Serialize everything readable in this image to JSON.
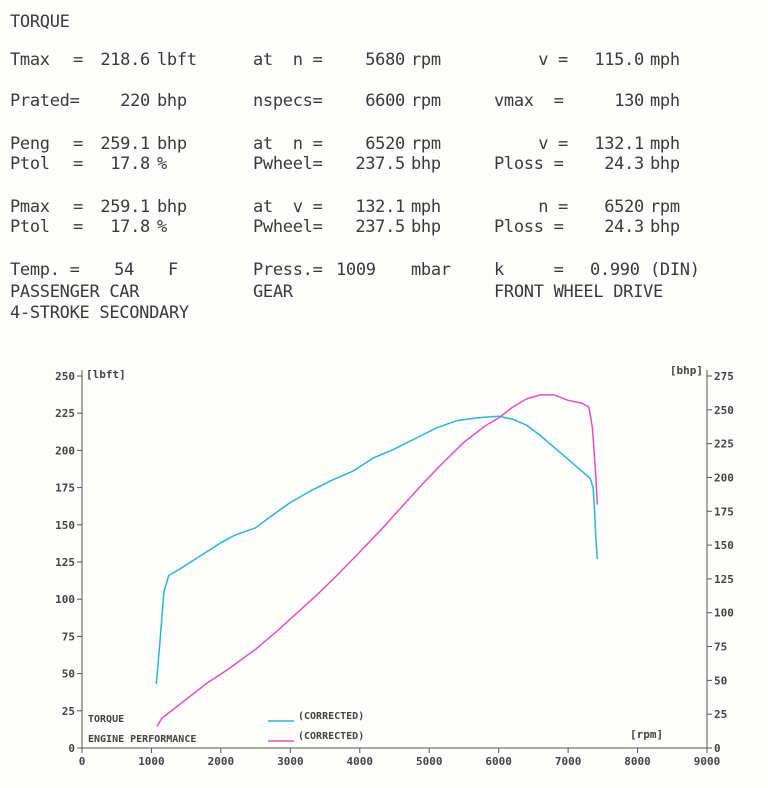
{
  "report": {
    "title": "TORQUE",
    "row1": {
      "label": "Tmax",
      "eq": "=",
      "value": "218.6",
      "unit": "lbft",
      "at_label": "at  n =",
      "at_value": "5680",
      "at_unit": "rpm",
      "c3_label": "v =",
      "c3_value": "115.0",
      "c3_unit": "mph"
    },
    "row2": {
      "label": "Prated=",
      "value": "220",
      "unit": "bhp",
      "mid_label": "nspecs=",
      "mid_value": "6600",
      "mid_unit": "rpm",
      "c3_label": "vmax  =",
      "c3_value": "130",
      "c3_unit": "mph"
    },
    "row3": {
      "label": "Peng",
      "eq": "=",
      "value": "259.1",
      "unit": "bhp",
      "at_label": "at  n =",
      "at_value": "6520",
      "at_unit": "rpm",
      "c3_label": "v =",
      "c3_value": "132.1",
      "c3_unit": "mph"
    },
    "row4": {
      "label": "Ptol",
      "eq": "=",
      "value": "17.8",
      "unit": "%",
      "mid_label": "Pwheel=",
      "mid_value": "237.5",
      "mid_unit": "bhp",
      "c3_label": "Ploss =",
      "c3_value": "24.3",
      "c3_unit": "bhp"
    },
    "row5": {
      "label": "Pmax",
      "eq": "=",
      "value": "259.1",
      "unit": "bhp",
      "at_label": "at  v =",
      "at_value": "132.1",
      "at_unit": "mph",
      "c3_label": "n =",
      "c3_value": "6520",
      "c3_unit": "rpm"
    },
    "row6": {
      "label": "Ptol",
      "eq": "=",
      "value": "17.8",
      "unit": "%",
      "mid_label": "Pwheel=",
      "mid_value": "237.5",
      "mid_unit": "bhp",
      "c3_label": "Ploss =",
      "c3_value": "24.3",
      "c3_unit": "bhp"
    },
    "row7": {
      "label": "Temp. =",
      "value": "54",
      "unit": "F",
      "mid_label": "Press.=",
      "mid_value": "1009",
      "mid_unit": "mbar",
      "c3_label": "k     =",
      "c3_value": "0.990",
      "c3_unit": "(DIN)"
    },
    "line8": {
      "c1": "PASSENGER CAR",
      "c2": "GEAR",
      "c3": "FRONT WHEEL DRIVE"
    },
    "line9": {
      "c1": "4-STROKE SECONDARY"
    }
  },
  "chart_data": {
    "type": "line",
    "xlabel": "[rpm]",
    "ylabel_left": "[lbft]",
    "ylabel_right": "[bhp]",
    "xlim": [
      0,
      9000
    ],
    "ylim_left": [
      0,
      250
    ],
    "ylim_right": [
      0,
      275
    ],
    "xticks": [
      "0",
      "1000",
      "2000",
      "3000",
      "4000",
      "5000",
      "6000",
      "7000",
      "8000",
      "9000"
    ],
    "yticks_left": [
      "0",
      "25",
      "50",
      "75",
      "100",
      "125",
      "150",
      "175",
      "200",
      "225",
      "250"
    ],
    "yticks_right": [
      "0",
      "25",
      "50",
      "75",
      "100",
      "125",
      "150",
      "175",
      "200",
      "225",
      "250",
      "275"
    ],
    "legend": [
      {
        "label": "TORQUE",
        "tag": "(CORRECTED)",
        "color": "#2ab4d8"
      },
      {
        "label": "ENGINE PERFORMANCE",
        "tag": "(CORRECTED)",
        "color": "#e050c8"
      }
    ],
    "series": [
      {
        "name": "TORQUE",
        "axis": "left",
        "color": "#2ab4d8",
        "x": [
          1070,
          1120,
          1180,
          1250,
          1400,
          1600,
          1800,
          2000,
          2200,
          2500,
          2700,
          3000,
          3300,
          3600,
          3900,
          4200,
          4500,
          4800,
          5100,
          5400,
          5700,
          6000,
          6200,
          6400,
          6600,
          6800,
          7000,
          7150,
          7250,
          7320,
          7360,
          7380,
          7400,
          7420
        ],
        "y": [
          43,
          70,
          105,
          116,
          120,
          126,
          132,
          138,
          143,
          148,
          155,
          165,
          173,
          180,
          186,
          195,
          201,
          208,
          215,
          220,
          222,
          223,
          221,
          217,
          210,
          202,
          194,
          188,
          184,
          181,
          175,
          160,
          140,
          127
        ]
      },
      {
        "name": "ENGINE PERFORMANCE",
        "axis": "right",
        "color": "#e050c8",
        "x": [
          1080,
          1150,
          1300,
          1500,
          1800,
          2100,
          2500,
          2800,
          3100,
          3400,
          3700,
          4000,
          4300,
          4600,
          4900,
          5200,
          5500,
          5800,
          6000,
          6200,
          6400,
          6600,
          6800,
          7000,
          7200,
          7300,
          7350,
          7400,
          7420
        ],
        "y": [
          16,
          22,
          28,
          36,
          48,
          58,
          73,
          86,
          100,
          114,
          129,
          145,
          161,
          178,
          195,
          211,
          226,
          238,
          244,
          252,
          258,
          261,
          261,
          257,
          255,
          252,
          237,
          200,
          180
        ]
      }
    ]
  }
}
